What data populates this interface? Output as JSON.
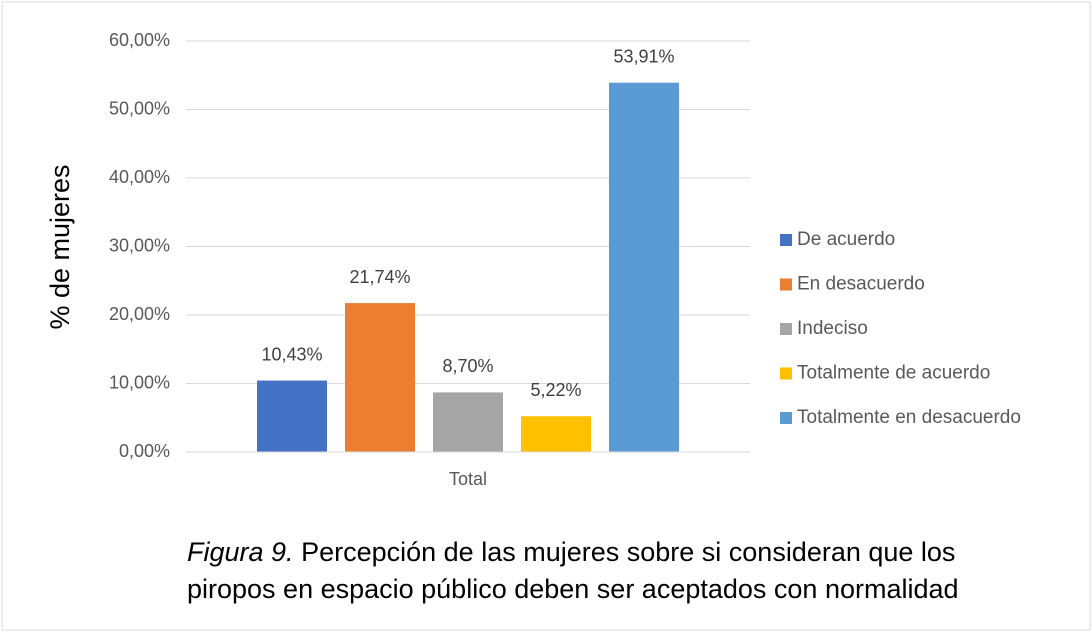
{
  "chart_data": {
    "type": "bar",
    "y_label": "% de mujeres",
    "categories": [
      "Total"
    ],
    "series": [
      {
        "name": "De acuerdo",
        "color": "#4472c4",
        "values": [
          10.43
        ],
        "value_labels": [
          "10,43%"
        ]
      },
      {
        "name": "En desacuerdo",
        "color": "#ed7d31",
        "values": [
          21.74
        ],
        "value_labels": [
          "21,74%"
        ]
      },
      {
        "name": "Indeciso",
        "color": "#a5a5a5",
        "values": [
          8.7
        ],
        "value_labels": [
          "8,70%"
        ]
      },
      {
        "name": "Totalmente de acuerdo",
        "color": "#ffc000",
        "values": [
          5.22
        ],
        "value_labels": [
          "5,22%"
        ]
      },
      {
        "name": "Totalmente en desacuerdo",
        "color": "#5b9bd5",
        "values": [
          53.91
        ],
        "value_labels": [
          "53,91%"
        ]
      }
    ],
    "ylim": [
      0,
      60
    ],
    "yticks": [
      {
        "value": 0,
        "label": "0,00%"
      },
      {
        "value": 10,
        "label": "10,00%"
      },
      {
        "value": 20,
        "label": "20,00%"
      },
      {
        "value": 30,
        "label": "30,00%"
      },
      {
        "value": 40,
        "label": "40,00%"
      },
      {
        "value": 50,
        "label": "50,00%"
      },
      {
        "value": 60,
        "label": "60,00%"
      }
    ],
    "grid": true,
    "legend": "right",
    "caption_label": "Figura 9.",
    "caption": "Percepción de las mujeres sobre si consideran que los piropos en espacio público deben ser aceptados con normalidad"
  }
}
